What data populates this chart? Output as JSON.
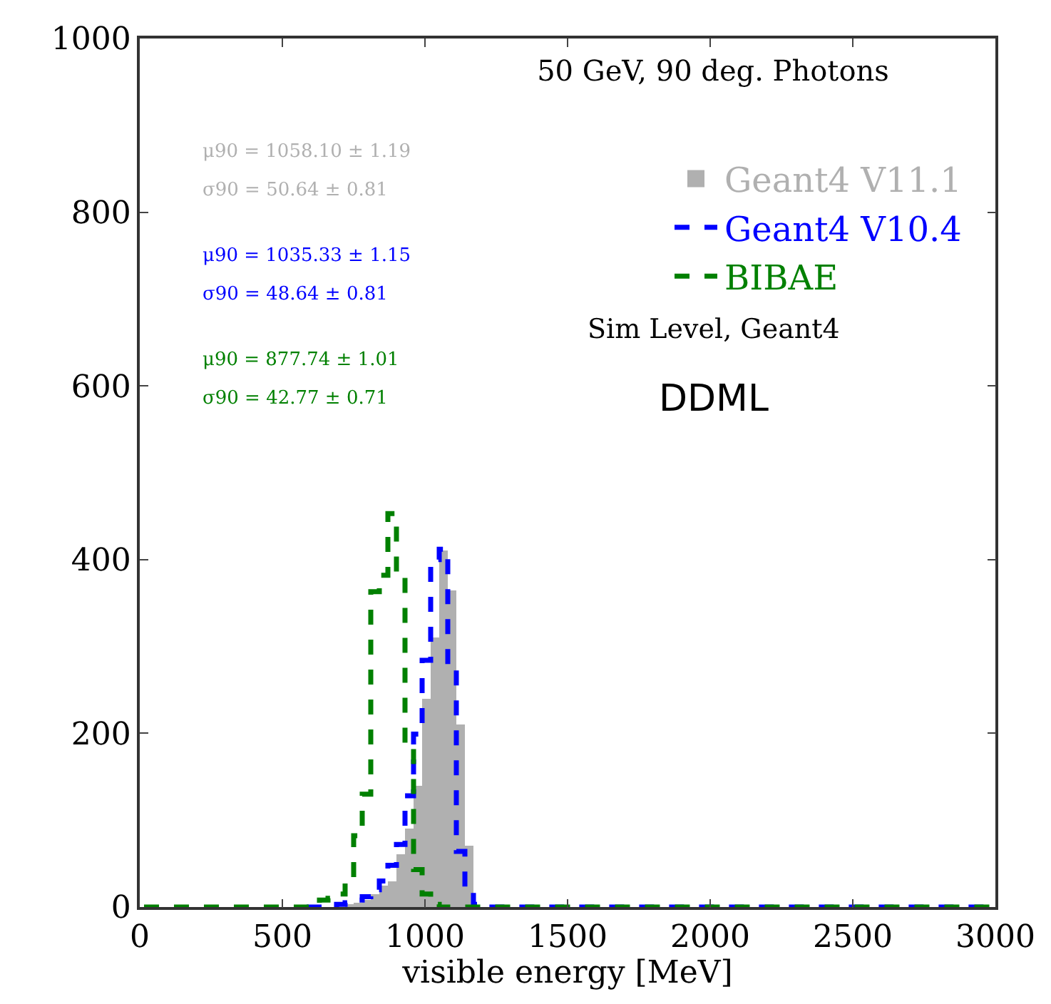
{
  "chart_data": {
    "type": "histogram",
    "title": "50 GeV, 90 deg. Photons",
    "xlabel": "visible energy [MeV]",
    "xlim": [
      0,
      3000
    ],
    "xticks": [
      0,
      500,
      1000,
      1500,
      2000,
      2500,
      3000
    ],
    "ylim": [
      0,
      1000
    ],
    "yticks": [
      0,
      200,
      400,
      600,
      800,
      1000
    ],
    "legend": "top right",
    "line_style": "dashed",
    "bins": [
      0,
      30,
      60,
      90,
      120,
      150,
      180,
      210,
      240,
      270,
      300,
      330,
      360,
      390,
      420,
      450,
      480,
      510,
      540,
      570,
      600,
      630,
      660,
      690,
      720,
      750,
      780,
      810,
      840,
      870,
      900,
      930,
      960,
      990,
      1020,
      1050,
      1080,
      1110,
      1140,
      1170,
      1200,
      1230,
      1260,
      1290,
      1320,
      1350,
      1380,
      1410,
      1440,
      1470,
      1500,
      1530,
      1560,
      1590,
      1620,
      1650,
      1680,
      1710,
      1740,
      1770,
      1800,
      1830,
      1860,
      1890,
      1920,
      1950,
      1980,
      2010,
      2040,
      2070,
      2100,
      2130,
      2160,
      2190,
      2220,
      2250,
      2280,
      2310,
      2340,
      2370,
      2400,
      2430,
      2460,
      2490,
      2520,
      2550,
      2580,
      2610,
      2640,
      2670,
      2700,
      2730,
      2760,
      2790,
      2820,
      2850,
      2880,
      2910,
      2940,
      2970,
      3000
    ],
    "series": [
      {
        "name": "Geant4 V11.1",
        "color": "#b0b0b0",
        "values": [
          0,
          0,
          0,
          0,
          0,
          0,
          0,
          0,
          0,
          0,
          0,
          0,
          0,
          0,
          0,
          0,
          0,
          0,
          0,
          0,
          0,
          0,
          0,
          0,
          2,
          5,
          8,
          15,
          25,
          30,
          60,
          90,
          140,
          240,
          310,
          410,
          365,
          210,
          70,
          0,
          0,
          0,
          0,
          0,
          0,
          0,
          0,
          0,
          0,
          0,
          0,
          0,
          0,
          0,
          0,
          0,
          0,
          0,
          0,
          0,
          0,
          0,
          0,
          0,
          0,
          0,
          0,
          0,
          0,
          0,
          0,
          0,
          0,
          0,
          0,
          0,
          0,
          0,
          0,
          0,
          0,
          0,
          0,
          0,
          0,
          0,
          0,
          0,
          0,
          0,
          0,
          0,
          0,
          0,
          0,
          0,
          0,
          0,
          0,
          0
        ]
      },
      {
        "name": "Geant4 V10.4",
        "type": "step",
        "color": "#0000ff",
        "x": [
          585,
          615,
          645,
          675,
          705,
          735,
          765,
          795,
          825,
          855,
          885,
          915,
          945,
          975,
          1005,
          1035,
          1065,
          1095,
          1125,
          1155,
          1185,
          1215,
          1245,
          1275,
          1305,
          1335,
          1365,
          1395,
          1425,
          1455,
          1485,
          1515,
          1545,
          1575,
          1605,
          1635,
          1665,
          1695,
          1725,
          1755,
          1785,
          1815,
          1845,
          1875,
          1905,
          1935,
          1965,
          1995,
          2025,
          2055,
          2085,
          2115,
          2145,
          2175,
          2205,
          2235,
          2265,
          2295,
          2325,
          2355,
          2385,
          2415,
          2445,
          2475,
          2505,
          2535,
          2565,
          2595,
          2625,
          2655,
          2685,
          2715,
          2745,
          2775,
          2805,
          2835,
          2865,
          2895,
          2925,
          2955,
          2985
        ],
        "values": [
          0,
          0,
          0,
          0,
          3,
          5,
          8,
          12,
          20,
          30,
          48,
          72,
          128,
          199,
          284,
          400,
          412,
          276,
          64,
          18,
          3,
          0,
          0,
          0,
          0,
          0,
          0,
          0,
          0,
          0,
          0,
          0,
          0,
          0,
          0,
          0,
          0,
          0,
          0,
          0,
          0,
          0,
          0,
          0,
          0,
          0,
          0,
          0,
          0,
          0,
          0,
          0,
          0,
          0,
          0,
          0,
          0,
          0,
          0,
          0,
          0,
          0,
          0,
          0,
          0,
          0,
          0,
          0,
          0,
          0,
          0,
          0,
          0,
          0,
          0,
          0,
          0,
          0,
          0,
          0,
          0
        ]
      },
      {
        "name": "BIBAE",
        "type": "step",
        "color": "#008000",
        "x": [
          15,
          45,
          75,
          105,
          135,
          165,
          195,
          225,
          255,
          285,
          315,
          345,
          375,
          405,
          435,
          465,
          495,
          525,
          555,
          585,
          615,
          645,
          675,
          705,
          735,
          765,
          795,
          825,
          855,
          885,
          915,
          945,
          975,
          1005,
          1035,
          1065,
          1095,
          1125,
          1155,
          1185,
          1215,
          1245,
          1275,
          1305,
          1335,
          1365,
          1395,
          1425,
          1455,
          1485,
          1515,
          1545,
          1575,
          1605,
          1635,
          1665,
          1695,
          1725,
          1755,
          1785,
          1815,
          1845,
          1875,
          1905,
          1935,
          1965,
          1995,
          2025,
          2055,
          2085,
          2115,
          2145,
          2175,
          2205,
          2235,
          2265,
          2295,
          2325,
          2355,
          2385,
          2415,
          2445,
          2475,
          2505,
          2535,
          2565,
          2595,
          2625,
          2655,
          2685,
          2715,
          2745,
          2775,
          2805,
          2835,
          2865,
          2895,
          2925,
          2955,
          2985
        ],
        "values": [
          0,
          0,
          0,
          0,
          0,
          0,
          0,
          0,
          0,
          0,
          0,
          0,
          0,
          0,
          0,
          0,
          0,
          0,
          0,
          0,
          3,
          8,
          10,
          15,
          31,
          82,
          130,
          363,
          382,
          453,
          380,
          185,
          43,
          15,
          3,
          0,
          0,
          0,
          0,
          0,
          0,
          0,
          0,
          0,
          0,
          0,
          0,
          0,
          0,
          0,
          0,
          0,
          0,
          0,
          0,
          0,
          0,
          0,
          0,
          0,
          0,
          0,
          0,
          0,
          0,
          0,
          0,
          0,
          0,
          0,
          0,
          0,
          0,
          0,
          0,
          0,
          0,
          0,
          0,
          0,
          0,
          0,
          0,
          0,
          0,
          0,
          0,
          0,
          0,
          0,
          0,
          0,
          0,
          0,
          0,
          0,
          0,
          0,
          0,
          0
        ]
      }
    ],
    "annotations": [
      "μ90 = 1058.10 ± 1.19",
      "σ90 = 50.64 ± 0.81",
      "μ90 = 1035.33 ± 1.15",
      "σ90 = 48.64 ± 0.81",
      "μ90 = 877.74 ± 1.01",
      "σ90 = 42.77 ± 0.71",
      "Sim Level, Geant4",
      "DDML"
    ]
  }
}
